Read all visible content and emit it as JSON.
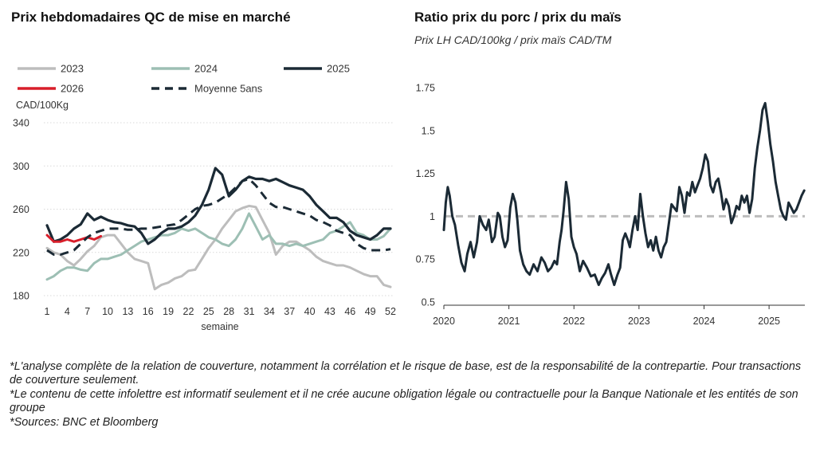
{
  "footnotes": [
    "*L'analyse complète de la relation de couverture, notamment la corrélation et le risque de base, est de la responsabilité de la contrepartie. Pour transactions de couverture seulement.",
    "*Le contenu de cette infolettre est informatif seulement et il ne crée aucune obligation légale ou contractuelle pour la Banque Nationale et les entités de son groupe",
    "*Sources: BNC et Bloomberg"
  ],
  "chart_data": [
    {
      "type": "line",
      "title": "Prix hebdomadaires QC de mise en marché",
      "ylabel": "CAD/100Kg",
      "xlabel": "semaine",
      "xlim": [
        1,
        52
      ],
      "ylim": [
        180,
        340
      ],
      "yticks": [
        180,
        220,
        260,
        300,
        340
      ],
      "xticks": [
        1,
        4,
        7,
        10,
        13,
        16,
        19,
        22,
        25,
        28,
        31,
        34,
        37,
        40,
        43,
        46,
        49,
        52
      ],
      "grid": true,
      "legend_position": "top",
      "series": [
        {
          "name": "2023",
          "color": "#bdbdbd",
          "style": "solid",
          "x": [
            1,
            2,
            3,
            4,
            5,
            6,
            7,
            8,
            9,
            10,
            11,
            12,
            13,
            14,
            15,
            16,
            17,
            18,
            19,
            20,
            21,
            22,
            23,
            24,
            25,
            26,
            27,
            28,
            29,
            30,
            31,
            32,
            33,
            34,
            35,
            36,
            37,
            38,
            39,
            40,
            41,
            42,
            43,
            44,
            45,
            46,
            47,
            48,
            49,
            50,
            51,
            52
          ],
          "y": [
            224,
            220,
            218,
            212,
            208,
            214,
            221,
            226,
            234,
            236,
            236,
            228,
            220,
            214,
            212,
            210,
            186,
            190,
            192,
            196,
            198,
            203,
            204,
            214,
            224,
            232,
            242,
            250,
            258,
            261,
            263,
            262,
            250,
            238,
            218,
            226,
            230,
            230,
            226,
            222,
            216,
            212,
            210,
            208,
            208,
            206,
            203,
            200,
            198,
            198,
            190,
            188
          ]
        },
        {
          "name": "2024",
          "color": "#9dbfb4",
          "style": "solid",
          "x": [
            1,
            2,
            3,
            4,
            5,
            6,
            7,
            8,
            9,
            10,
            11,
            12,
            13,
            14,
            15,
            16,
            17,
            18,
            19,
            20,
            21,
            22,
            23,
            24,
            25,
            26,
            27,
            28,
            29,
            30,
            31,
            32,
            33,
            34,
            35,
            36,
            37,
            38,
            39,
            40,
            41,
            42,
            43,
            44,
            45,
            46,
            47,
            48,
            49,
            50,
            51,
            52
          ],
          "y": [
            195,
            198,
            203,
            206,
            206,
            204,
            203,
            210,
            214,
            214,
            216,
            218,
            222,
            226,
            230,
            232,
            234,
            236,
            236,
            238,
            242,
            240,
            242,
            238,
            234,
            232,
            228,
            226,
            232,
            242,
            256,
            244,
            232,
            236,
            228,
            228,
            226,
            228,
            226,
            228,
            230,
            232,
            238,
            240,
            244,
            248,
            238,
            236,
            232,
            232,
            235,
            242
          ]
        },
        {
          "name": "2025",
          "color": "#1b2a35",
          "style": "solid",
          "x": [
            1,
            2,
            3,
            4,
            5,
            6,
            7,
            8,
            9,
            10,
            11,
            12,
            13,
            14,
            15,
            16,
            17,
            18,
            19,
            20,
            21,
            22,
            23,
            24,
            25,
            26,
            27,
            28,
            29,
            30,
            31,
            32,
            33,
            34,
            35,
            36,
            37,
            38,
            39,
            40,
            41,
            42,
            43,
            44,
            45,
            46,
            47,
            48,
            49,
            50,
            51,
            52
          ],
          "y": [
            245,
            230,
            232,
            236,
            242,
            246,
            256,
            250,
            253,
            250,
            248,
            247,
            245,
            244,
            238,
            228,
            232,
            238,
            242,
            242,
            244,
            248,
            254,
            264,
            278,
            298,
            292,
            272,
            278,
            286,
            290,
            288,
            288,
            286,
            288,
            285,
            282,
            280,
            278,
            272,
            264,
            258,
            252,
            252,
            248,
            240,
            236,
            234,
            232,
            236,
            242,
            242
          ]
        },
        {
          "name": "2026",
          "color": "#d81e2a",
          "style": "solid",
          "x": [
            1,
            2,
            3,
            4,
            5,
            6,
            7,
            8,
            9
          ],
          "y": [
            236,
            230,
            230,
            232,
            230,
            232,
            234,
            232,
            235
          ]
        },
        {
          "name": "Moyenne 5ans",
          "color": "#1b2a35",
          "style": "dashed",
          "x": [
            1,
            2,
            3,
            4,
            5,
            6,
            7,
            8,
            9,
            10,
            11,
            12,
            13,
            14,
            15,
            16,
            17,
            18,
            19,
            20,
            21,
            22,
            23,
            24,
            25,
            26,
            27,
            28,
            29,
            30,
            31,
            32,
            33,
            34,
            35,
            36,
            37,
            38,
            39,
            40,
            41,
            42,
            43,
            44,
            45,
            46,
            47,
            48,
            49,
            50,
            51,
            52
          ],
          "y": [
            222,
            218,
            218,
            220,
            222,
            228,
            234,
            238,
            240,
            242,
            242,
            242,
            241,
            241,
            242,
            242,
            243,
            244,
            245,
            246,
            250,
            255,
            260,
            263,
            264,
            266,
            270,
            274,
            280,
            286,
            288,
            282,
            274,
            266,
            262,
            262,
            260,
            258,
            256,
            254,
            250,
            248,
            245,
            240,
            238,
            236,
            228,
            224,
            222,
            222,
            222,
            223
          ]
        }
      ]
    },
    {
      "type": "line",
      "title": "Ratio prix du porc / prix du maïs",
      "subtitle": "Prix LH CAD/100kg / prix maïs CAD/TM",
      "xlim": [
        2020,
        2025.55
      ],
      "ylim": [
        0.5,
        1.75
      ],
      "yticks": [
        0.5,
        0.75,
        1,
        1.25,
        1.5,
        1.75
      ],
      "ytick_labels": [
        "0.5",
        "0.75",
        "1",
        "1.25",
        "1.5",
        "1.75"
      ],
      "xticks": [
        2020,
        2021,
        2022,
        2023,
        2024,
        2025
      ],
      "grid": false,
      "reference_line": {
        "y": 1.0,
        "color": "#bdbdbd",
        "style": "dashed"
      },
      "series": [
        {
          "name": "",
          "color": "#1b2a35",
          "style": "solid",
          "x": [
            2020.0,
            2020.03,
            2020.06,
            2020.09,
            2020.13,
            2020.17,
            2020.22,
            2020.27,
            2020.32,
            2020.36,
            2020.41,
            2020.46,
            2020.51,
            2020.55,
            2020.6,
            2020.65,
            2020.69,
            2020.74,
            2020.78,
            2020.83,
            2020.86,
            2020.9,
            2020.94,
            2020.98,
            2021.02,
            2021.06,
            2021.1,
            2021.13,
            2021.17,
            2021.22,
            2021.27,
            2021.32,
            2021.38,
            2021.44,
            2021.5,
            2021.55,
            2021.6,
            2021.65,
            2021.7,
            2021.74,
            2021.78,
            2021.81,
            2021.84,
            2021.88,
            2021.92,
            2021.96,
            2022.0,
            2022.04,
            2022.09,
            2022.14,
            2022.2,
            2022.26,
            2022.32,
            2022.38,
            2022.43,
            2022.48,
            2022.53,
            2022.57,
            2022.62,
            2022.67,
            2022.71,
            2022.75,
            2022.79,
            2022.83,
            2022.86,
            2022.9,
            2022.94,
            2022.98,
            2023.02,
            2023.06,
            2023.1,
            2023.14,
            2023.18,
            2023.22,
            2023.26,
            2023.3,
            2023.34,
            2023.38,
            2023.42,
            2023.46,
            2023.5,
            2023.54,
            2023.58,
            2023.62,
            2023.66,
            2023.7,
            2023.74,
            2023.78,
            2023.82,
            2023.86,
            2023.9,
            2023.94,
            2023.98,
            2024.02,
            2024.06,
            2024.1,
            2024.14,
            2024.18,
            2024.22,
            2024.26,
            2024.3,
            2024.34,
            2024.38,
            2024.42,
            2024.46,
            2024.5,
            2024.54,
            2024.58,
            2024.62,
            2024.66,
            2024.7,
            2024.74,
            2024.78,
            2024.82,
            2024.86,
            2024.9,
            2024.94,
            2024.98,
            2025.02,
            2025.06,
            2025.1,
            2025.14,
            2025.18,
            2025.22,
            2025.26,
            2025.3,
            2025.34,
            2025.38,
            2025.42,
            2025.46,
            2025.5,
            2025.54
          ],
          "y": [
            0.92,
            1.08,
            1.17,
            1.12,
            1.0,
            0.95,
            0.83,
            0.73,
            0.68,
            0.78,
            0.85,
            0.76,
            0.85,
            1.0,
            0.95,
            0.92,
            0.98,
            0.85,
            0.88,
            1.02,
            1.0,
            0.88,
            0.82,
            0.86,
            1.05,
            1.13,
            1.08,
            0.98,
            0.8,
            0.72,
            0.68,
            0.66,
            0.72,
            0.68,
            0.76,
            0.73,
            0.68,
            0.7,
            0.74,
            0.72,
            0.85,
            0.92,
            1.03,
            1.2,
            1.1,
            0.88,
            0.82,
            0.78,
            0.68,
            0.74,
            0.7,
            0.65,
            0.66,
            0.6,
            0.64,
            0.67,
            0.72,
            0.66,
            0.6,
            0.66,
            0.7,
            0.86,
            0.9,
            0.86,
            0.82,
            0.92,
            1.0,
            0.92,
            1.13,
            1.0,
            0.9,
            0.82,
            0.86,
            0.8,
            0.88,
            0.8,
            0.76,
            0.82,
            0.85,
            0.96,
            1.07,
            1.05,
            1.03,
            1.17,
            1.12,
            1.02,
            1.14,
            1.12,
            1.2,
            1.14,
            1.18,
            1.22,
            1.28,
            1.36,
            1.32,
            1.18,
            1.14,
            1.2,
            1.22,
            1.14,
            1.04,
            1.1,
            1.06,
            0.96,
            1.0,
            1.06,
            1.04,
            1.12,
            1.08,
            1.12,
            1.02,
            1.1,
            1.28,
            1.4,
            1.5,
            1.62,
            1.66,
            1.55,
            1.42,
            1.32,
            1.2,
            1.12,
            1.04,
            1.0,
            0.98,
            1.08,
            1.05,
            1.02,
            1.04,
            1.08,
            1.12,
            1.15
          ]
        }
      ]
    }
  ]
}
